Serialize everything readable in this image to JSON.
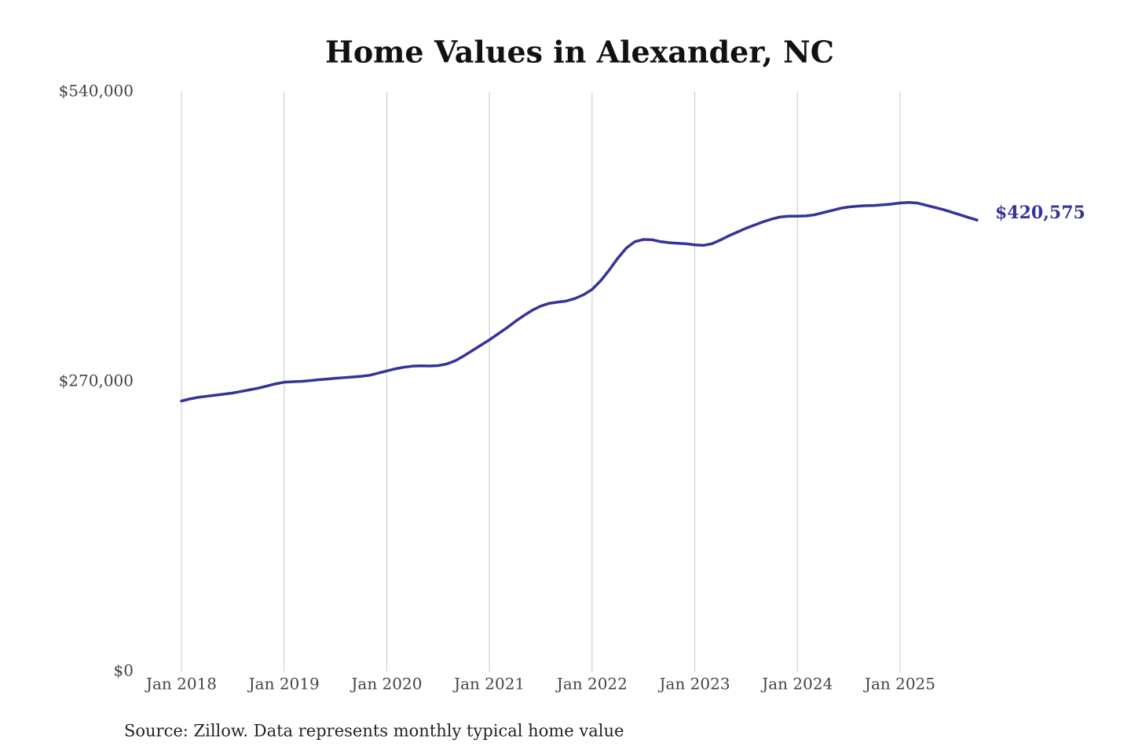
{
  "chart_data": {
    "type": "line",
    "title": "Home Values in Alexander, NC",
    "source": "Source: Zillow. Data represents monthly typical home value",
    "x": [
      "2018-01",
      "2018-02",
      "2018-03",
      "2018-04",
      "2018-05",
      "2018-06",
      "2018-07",
      "2018-08",
      "2018-09",
      "2018-10",
      "2018-11",
      "2018-12",
      "2019-01",
      "2019-02",
      "2019-03",
      "2019-04",
      "2019-05",
      "2019-06",
      "2019-07",
      "2019-08",
      "2019-09",
      "2019-10",
      "2019-11",
      "2019-12",
      "2020-01",
      "2020-02",
      "2020-03",
      "2020-04",
      "2020-05",
      "2020-06",
      "2020-07",
      "2020-08",
      "2020-09",
      "2020-10",
      "2020-11",
      "2020-12",
      "2021-01",
      "2021-02",
      "2021-03",
      "2021-04",
      "2021-05",
      "2021-06",
      "2021-07",
      "2021-08",
      "2021-09",
      "2021-10",
      "2021-11",
      "2021-12",
      "2022-01",
      "2022-02",
      "2022-03",
      "2022-04",
      "2022-05",
      "2022-06",
      "2022-07",
      "2022-08",
      "2022-09",
      "2022-10",
      "2022-11",
      "2022-12",
      "2023-01",
      "2023-02",
      "2023-03",
      "2023-04",
      "2023-05",
      "2023-06",
      "2023-07",
      "2023-08",
      "2023-09",
      "2023-10",
      "2023-11",
      "2023-12",
      "2024-01",
      "2024-02",
      "2024-03",
      "2024-04",
      "2024-05",
      "2024-06",
      "2024-07",
      "2024-08",
      "2024-09",
      "2024-10",
      "2024-11",
      "2024-12",
      "2025-01",
      "2025-02",
      "2025-03",
      "2025-04",
      "2025-05",
      "2025-06",
      "2025-07",
      "2025-08",
      "2025-09",
      "2025-10"
    ],
    "values": [
      252000,
      254000,
      255500,
      256500,
      257500,
      258500,
      259500,
      261000,
      262500,
      264000,
      266000,
      268000,
      269500,
      270000,
      270300,
      271000,
      271800,
      272500,
      273200,
      273800,
      274400,
      275000,
      276000,
      278000,
      280000,
      282000,
      283500,
      284500,
      284800,
      284600,
      285000,
      286500,
      289500,
      294000,
      299000,
      304000,
      309000,
      314500,
      320000,
      326000,
      331500,
      336500,
      340500,
      343000,
      344200,
      345200,
      347500,
      351000,
      356000,
      364000,
      374000,
      385000,
      394500,
      400500,
      402500,
      402300,
      400500,
      399500,
      399000,
      398500,
      397500,
      397000,
      398500,
      402000,
      406000,
      409500,
      413000,
      416000,
      419000,
      421500,
      423500,
      424200,
      424200,
      424500,
      425500,
      427500,
      429500,
      431500,
      432800,
      433500,
      434000,
      434200,
      434800,
      435500,
      436500,
      437000,
      436500,
      434500,
      432500,
      430500,
      428000,
      425500,
      423000,
      420575
    ],
    "color": "#35339a",
    "xlim": [
      "2018-01",
      "2025-10"
    ],
    "xticks": [
      {
        "value": "2018-01",
        "label": "Jan 2018"
      },
      {
        "value": "2019-01",
        "label": "Jan 2019"
      },
      {
        "value": "2020-01",
        "label": "Jan 2020"
      },
      {
        "value": "2021-01",
        "label": "Jan 2021"
      },
      {
        "value": "2022-01",
        "label": "Jan 2022"
      },
      {
        "value": "2023-01",
        "label": "Jan 2023"
      },
      {
        "value": "2024-01",
        "label": "Jan 2024"
      },
      {
        "value": "2025-01",
        "label": "Jan 2025"
      }
    ],
    "ylim": [
      0,
      540000
    ],
    "yticks": [
      {
        "value": 0,
        "label": "$0"
      },
      {
        "value": 270000,
        "label": "$270,000"
      },
      {
        "value": 540000,
        "label": "$540,000"
      }
    ],
    "grid": "x",
    "annotations": [
      {
        "text": "$420,575",
        "x": "2025-10",
        "y": 420575
      }
    ]
  }
}
